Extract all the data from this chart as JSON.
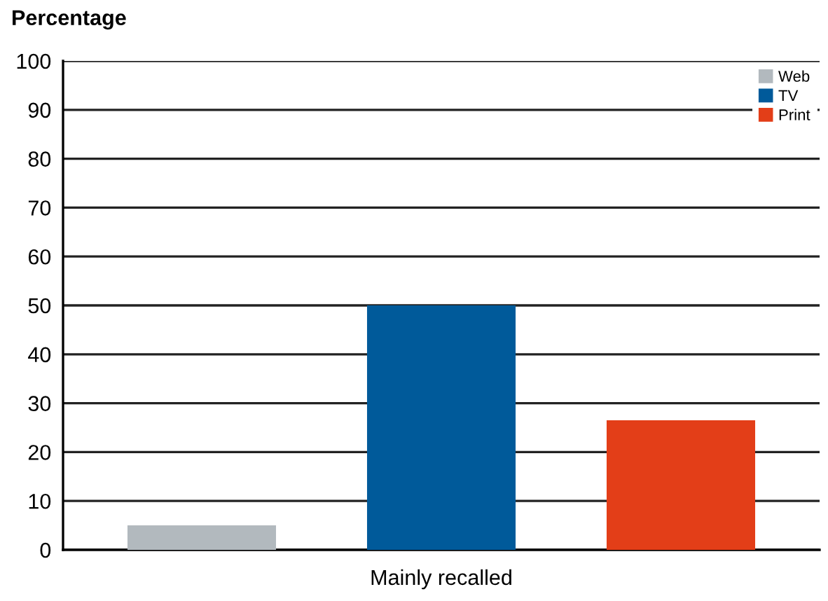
{
  "chart_data": {
    "type": "bar",
    "ylabel": "Percentage",
    "categories": [
      "Mainly recalled"
    ],
    "series": [
      {
        "name": "Web",
        "color": "#b2b9be",
        "values": [
          5
        ]
      },
      {
        "name": "TV",
        "color": "#005a9a",
        "values": [
          50
        ]
      },
      {
        "name": "Print",
        "color": "#e33e18",
        "values": [
          26.5
        ]
      }
    ],
    "ylim": [
      0,
      100
    ],
    "yticks": [
      0,
      10,
      20,
      30,
      40,
      50,
      60,
      70,
      80,
      90,
      100
    ],
    "grid": "y",
    "legend": "top right"
  }
}
